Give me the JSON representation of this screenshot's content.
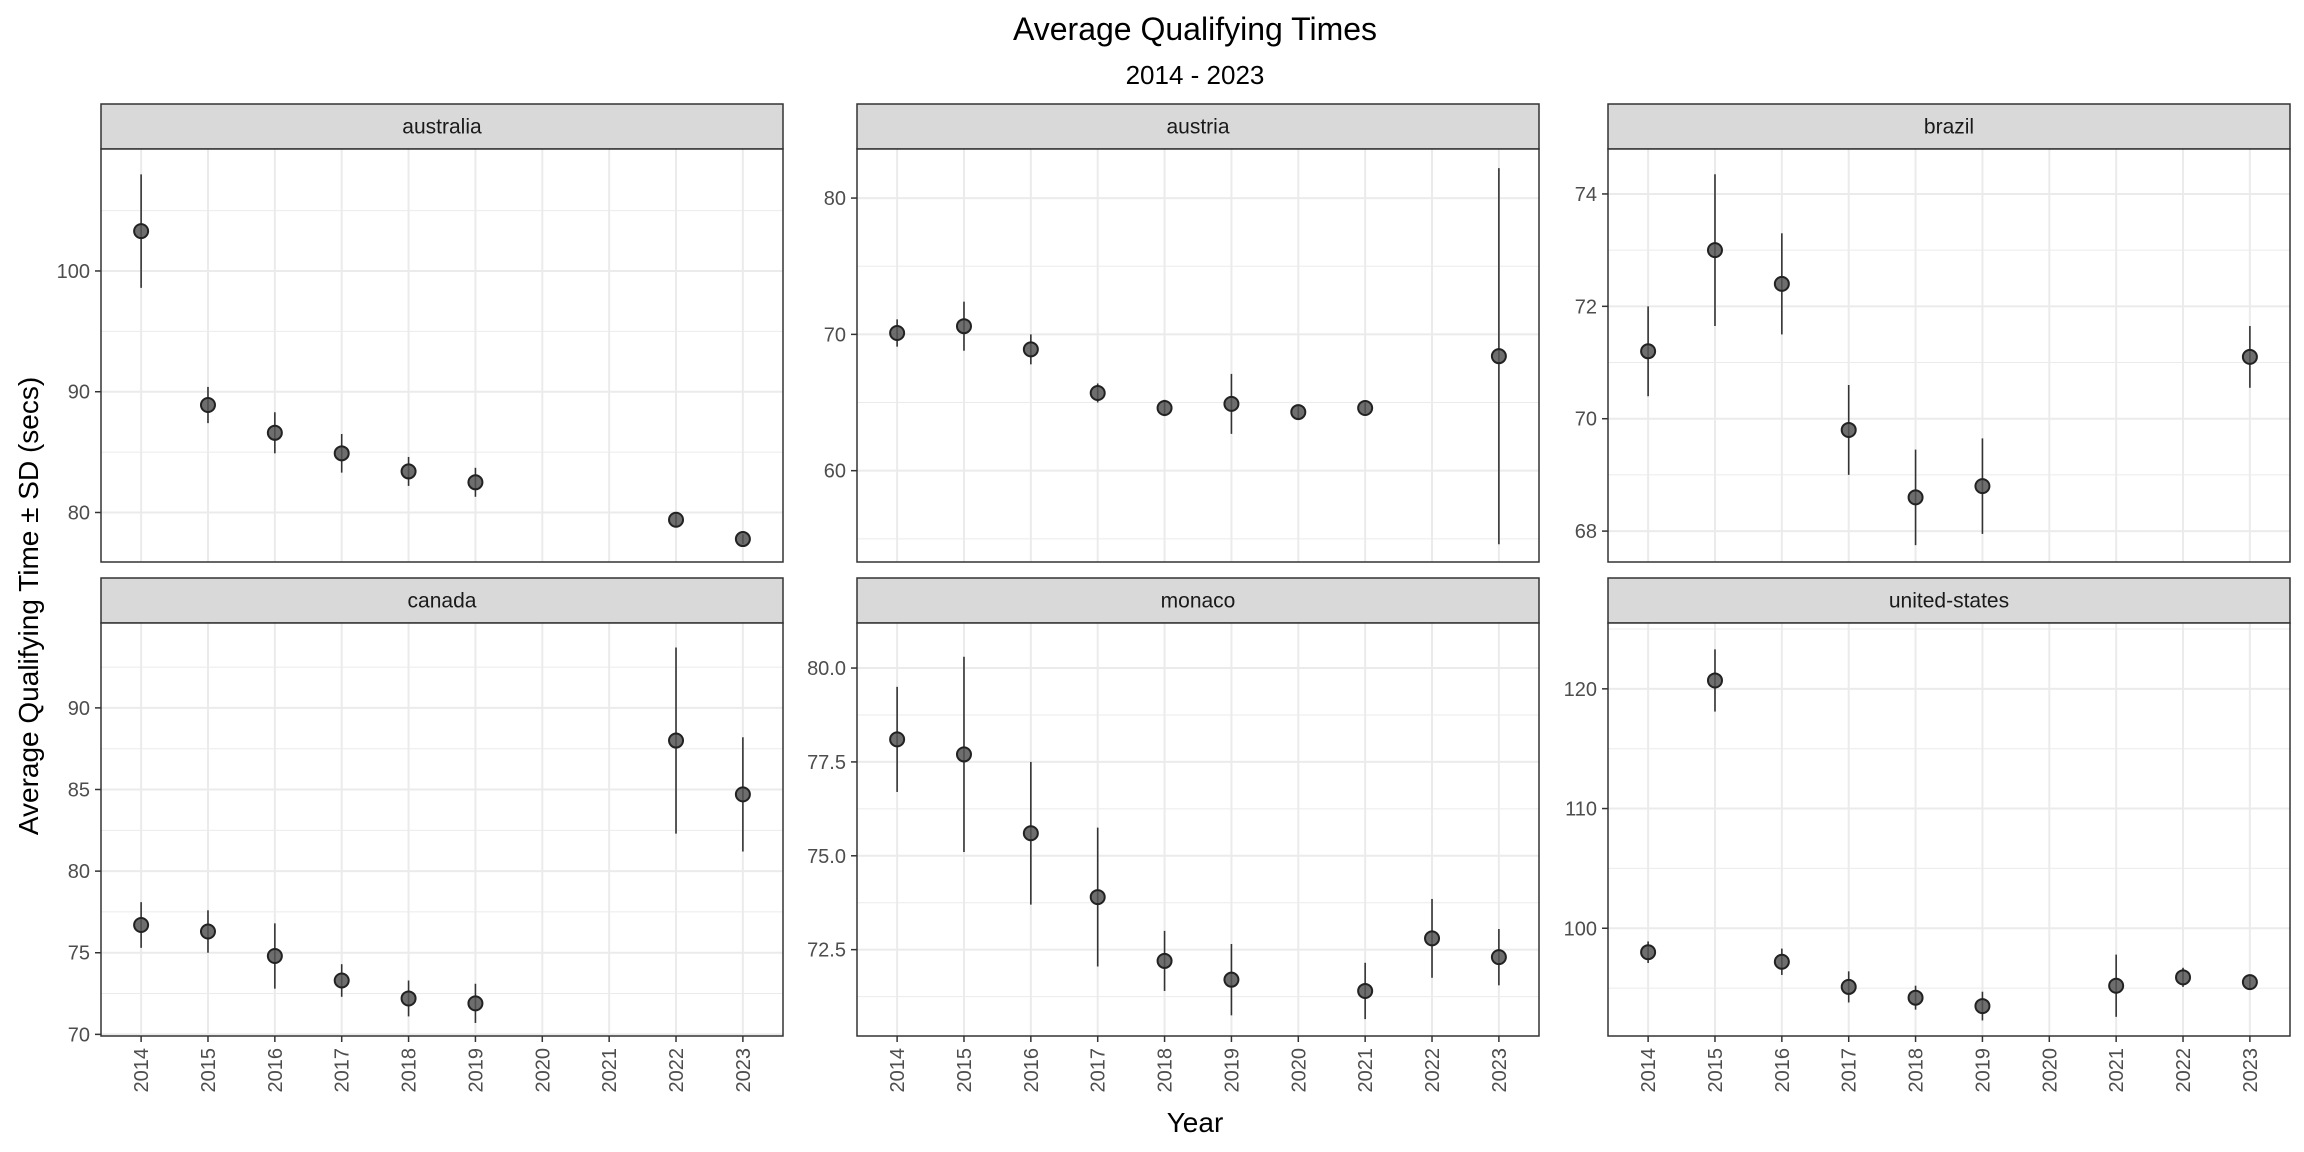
{
  "chart_data": {
    "type": "scatter",
    "title": "Average Qualifying Times",
    "subtitle": "2014 - 2023",
    "xlabel": "Year",
    "ylabel": "Average Qualifying Time ± SD (secs)",
    "x_categories": [
      "2014",
      "2015",
      "2016",
      "2017",
      "2018",
      "2019",
      "2020",
      "2021",
      "2022",
      "2023"
    ],
    "error_bars": "± SD",
    "grid": true,
    "layout": "facet grid, 2 rows x 3 columns, free y scales",
    "colors": {
      "point": "#555555",
      "errorbar": "#333333",
      "strip": "#d9d9d9",
      "grid": "#ebebeb"
    },
    "panels": [
      {
        "name": "australia",
        "ylim": [
          75.9,
          110.1
        ],
        "yticks": [
          80,
          90,
          100
        ],
        "points": [
          {
            "x": "2014",
            "y": 103.3,
            "sd": 4.7
          },
          {
            "x": "2015",
            "y": 88.9,
            "sd": 1.5
          },
          {
            "x": "2016",
            "y": 86.6,
            "sd": 1.7
          },
          {
            "x": "2017",
            "y": 84.9,
            "sd": 1.6
          },
          {
            "x": "2018",
            "y": 83.4,
            "sd": 1.2
          },
          {
            "x": "2019",
            "y": 82.5,
            "sd": 1.2
          },
          {
            "x": "2022",
            "y": 79.4,
            "sd": 0.6
          },
          {
            "x": "2023",
            "y": 77.8,
            "sd": 0.4
          }
        ]
      },
      {
        "name": "austria",
        "ylim": [
          53.3,
          83.6
        ],
        "yticks": [
          60,
          70,
          80
        ],
        "points": [
          {
            "x": "2014",
            "y": 70.1,
            "sd": 1.0
          },
          {
            "x": "2015",
            "y": 70.6,
            "sd": 1.8
          },
          {
            "x": "2016",
            "y": 68.9,
            "sd": 1.1
          },
          {
            "x": "2017",
            "y": 65.7,
            "sd": 0.7
          },
          {
            "x": "2018",
            "y": 64.6,
            "sd": 0.6
          },
          {
            "x": "2019",
            "y": 64.9,
            "sd": 2.2
          },
          {
            "x": "2020",
            "y": 64.3,
            "sd": 0.5
          },
          {
            "x": "2021",
            "y": 64.6,
            "sd": 0.4
          },
          {
            "x": "2023",
            "y": 68.4,
            "sd": 13.8
          }
        ]
      },
      {
        "name": "brazil",
        "ylim": [
          67.45,
          74.8
        ],
        "yticks": [
          68,
          70,
          72,
          74
        ],
        "points": [
          {
            "x": "2014",
            "y": 71.2,
            "sd": 0.8
          },
          {
            "x": "2015",
            "y": 73.0,
            "sd": 1.35
          },
          {
            "x": "2016",
            "y": 72.4,
            "sd": 0.9
          },
          {
            "x": "2017",
            "y": 69.8,
            "sd": 0.8
          },
          {
            "x": "2018",
            "y": 68.6,
            "sd": 0.85
          },
          {
            "x": "2019",
            "y": 68.8,
            "sd": 0.85
          },
          {
            "x": "2023",
            "y": 71.1,
            "sd": 0.55
          }
        ]
      },
      {
        "name": "canada",
        "ylim": [
          69.9,
          95.2
        ],
        "yticks": [
          70,
          75,
          80,
          85,
          90
        ],
        "points": [
          {
            "x": "2014",
            "y": 76.7,
            "sd": 1.4
          },
          {
            "x": "2015",
            "y": 76.3,
            "sd": 1.3
          },
          {
            "x": "2016",
            "y": 74.8,
            "sd": 2.0
          },
          {
            "x": "2017",
            "y": 73.3,
            "sd": 1.0
          },
          {
            "x": "2018",
            "y": 72.2,
            "sd": 1.1
          },
          {
            "x": "2019",
            "y": 71.9,
            "sd": 1.2
          },
          {
            "x": "2022",
            "y": 88.0,
            "sd": 5.7
          },
          {
            "x": "2023",
            "y": 84.7,
            "sd": 3.5
          }
        ]
      },
      {
        "name": "monaco",
        "ylim": [
          70.2,
          81.2
        ],
        "yticks": [
          72.5,
          75.0,
          77.5,
          80.0
        ],
        "ytick_labels": [
          "72.5",
          "75.0",
          "77.5",
          "80.0"
        ],
        "points": [
          {
            "x": "2014",
            "y": 78.1,
            "sd": 1.4
          },
          {
            "x": "2015",
            "y": 77.7,
            "sd": 2.6
          },
          {
            "x": "2016",
            "y": 75.6,
            "sd": 1.9
          },
          {
            "x": "2017",
            "y": 73.9,
            "sd": 1.85
          },
          {
            "x": "2018",
            "y": 72.2,
            "sd": 0.8
          },
          {
            "x": "2019",
            "y": 71.7,
            "sd": 0.95
          },
          {
            "x": "2021",
            "y": 71.4,
            "sd": 0.75
          },
          {
            "x": "2022",
            "y": 72.8,
            "sd": 1.05
          },
          {
            "x": "2023",
            "y": 72.3,
            "sd": 0.75
          }
        ]
      },
      {
        "name": "united-states",
        "ylim": [
          91.0,
          125.5
        ],
        "yticks": [
          100,
          110,
          120
        ],
        "points": [
          {
            "x": "2014",
            "y": 98.0,
            "sd": 0.9
          },
          {
            "x": "2015",
            "y": 120.7,
            "sd": 2.6
          },
          {
            "x": "2016",
            "y": 97.2,
            "sd": 1.1
          },
          {
            "x": "2017",
            "y": 95.1,
            "sd": 1.3
          },
          {
            "x": "2018",
            "y": 94.2,
            "sd": 1.0
          },
          {
            "x": "2019",
            "y": 93.5,
            "sd": 1.2
          },
          {
            "x": "2021",
            "y": 95.2,
            "sd": 2.6
          },
          {
            "x": "2022",
            "y": 95.9,
            "sd": 0.8
          },
          {
            "x": "2023",
            "y": 95.5,
            "sd": 0.6
          }
        ]
      }
    ]
  }
}
